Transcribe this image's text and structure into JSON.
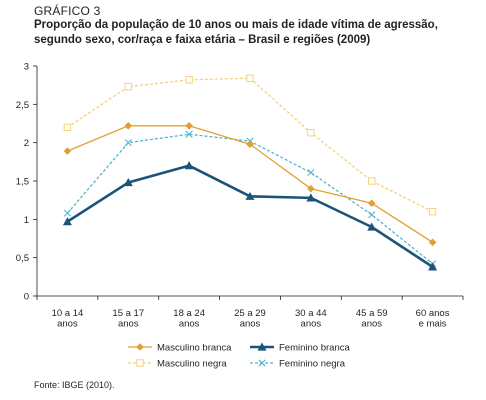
{
  "figure_label": "GRÁFICO 3",
  "chart_data": {
    "type": "line",
    "title": "Proporção da população de 10 anos ou mais de idade vítima de agressão, segundo sexo, cor/raça e faixa etária – Brasil e regiões (2009)",
    "categories": [
      [
        "10 a 14",
        "anos"
      ],
      [
        "15 a 17",
        "anos"
      ],
      [
        "18 a 24",
        "anos"
      ],
      [
        "25 a 29",
        "anos"
      ],
      [
        "30 a 44",
        "anos"
      ],
      [
        "45 a 59",
        "anos"
      ],
      [
        "60 anos",
        "e mais"
      ]
    ],
    "ylim": [
      0,
      3
    ],
    "yticks": [
      "0",
      "0,5",
      "1",
      "1,5",
      "2",
      "2,5",
      "3"
    ],
    "ytick_values": [
      0,
      0.5,
      1,
      1.5,
      2,
      2.5,
      3
    ],
    "legend_position": "bottom",
    "series": [
      {
        "name": "Masculino branca",
        "color": "#e0a031",
        "marker": "diamond",
        "dashed": false,
        "bold": false,
        "values": [
          1.89,
          2.22,
          2.22,
          1.98,
          1.4,
          1.21,
          0.7
        ]
      },
      {
        "name": "Feminino branca",
        "color": "#1b5478",
        "marker": "triangle",
        "dashed": false,
        "bold": true,
        "values": [
          0.97,
          1.48,
          1.7,
          1.3,
          1.28,
          0.9,
          0.38
        ]
      },
      {
        "name": "Masculino negra",
        "color": "#f5d27a",
        "marker": "square",
        "dashed": true,
        "bold": false,
        "values": [
          2.2,
          2.73,
          2.82,
          2.84,
          2.13,
          1.5,
          1.1
        ]
      },
      {
        "name": "Feminino negra",
        "color": "#55b4d2",
        "marker": "x",
        "dashed": true,
        "bold": false,
        "values": [
          1.08,
          2.0,
          2.11,
          2.02,
          1.61,
          1.06,
          0.42
        ]
      }
    ]
  },
  "source": "Fonte: IBGE (2010)."
}
